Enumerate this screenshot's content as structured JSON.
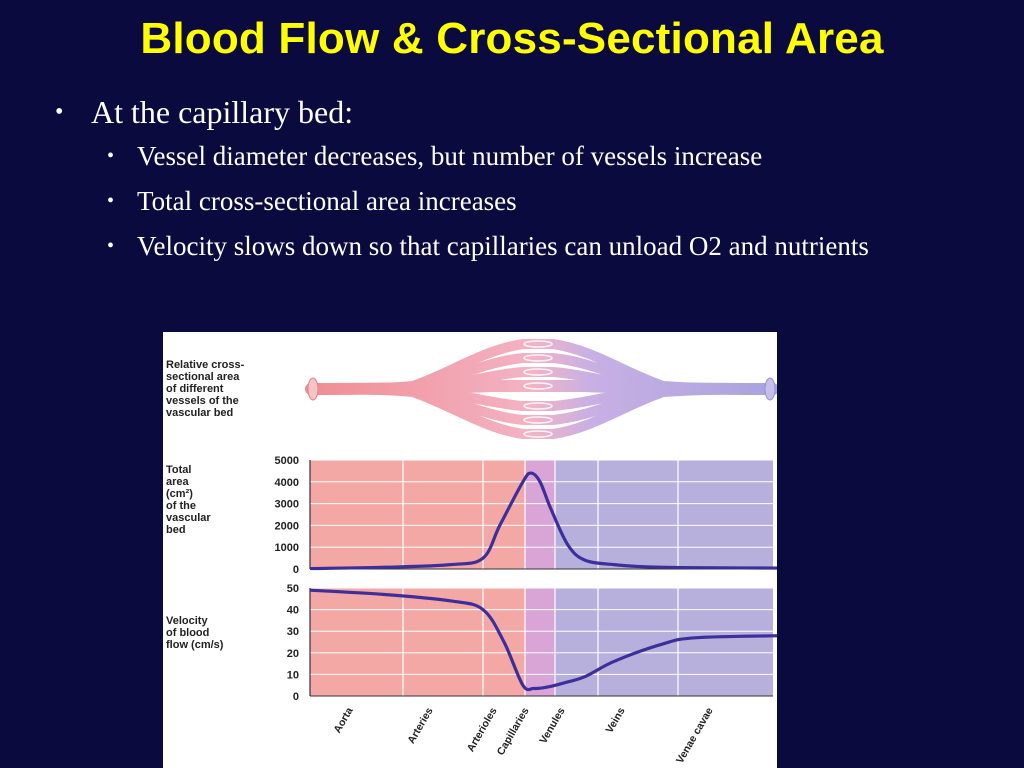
{
  "title": "Blood Flow & Cross-Sectional Area",
  "bullets": {
    "main": "At the capillary bed:",
    "sub": [
      "Vessel diameter decreases, but number of vessels increase",
      "Total cross-sectional area increases",
      "Velocity slows down so that capillaries can unload O2 and nutrients"
    ]
  },
  "figure": {
    "vessel_label": [
      "Relative cross-",
      "sectional area",
      "of different",
      "vessels of the",
      "vascular bed"
    ],
    "area_label": [
      "Total",
      "area",
      "(cm²)",
      "of the",
      "vascular",
      "bed"
    ],
    "velocity_label": [
      "Velocity",
      "of blood",
      "flow (cm/s)"
    ],
    "colors": {
      "arterial": "#f4a8a5",
      "capillary": "#d9a5d6",
      "venous": "#b7b0dc",
      "curve": "#3c2f9a"
    }
  },
  "chart_data": [
    {
      "type": "line",
      "ylabel": "Total area (cm²) of the vascular bed",
      "ylim": [
        0,
        5000
      ],
      "yticks": [
        "5000",
        "4000",
        "3000",
        "2000",
        "1000",
        "0"
      ],
      "categories": [
        "Aorta",
        "Arteries",
        "Arterioles",
        "Capillaries",
        "Venules",
        "Veins",
        "Venae cavae"
      ],
      "x": [
        0,
        0.8,
        1.6,
        2.0,
        2.4,
        2.95,
        3.2,
        3.5,
        3.85,
        4.3,
        4.7,
        5.2,
        5.6,
        6.2,
        7.2
      ],
      "y": [
        20,
        80,
        200,
        500,
        2000,
        4000,
        4400,
        4000,
        2800,
        1100,
        400,
        200,
        100,
        60,
        40
      ]
    },
    {
      "type": "line",
      "ylabel": "Velocity of blood flow (cm/s)",
      "ylim": [
        0,
        50
      ],
      "yticks": [
        "50",
        "40",
        "30",
        "20",
        "10",
        "0"
      ],
      "categories": [
        "Aorta",
        "Arteries",
        "Arterioles",
        "Capillaries",
        "Venules",
        "Veins",
        "Venae cavae"
      ],
      "x": [
        0,
        0.8,
        1.6,
        2.0,
        2.5,
        2.95,
        3.3,
        3.7,
        4.2,
        4.7,
        5.2,
        5.8,
        6.2,
        7.2
      ],
      "y": [
        49,
        47,
        44,
        40,
        25,
        5,
        3.5,
        4,
        6,
        9,
        16,
        24,
        27,
        28
      ]
    }
  ]
}
